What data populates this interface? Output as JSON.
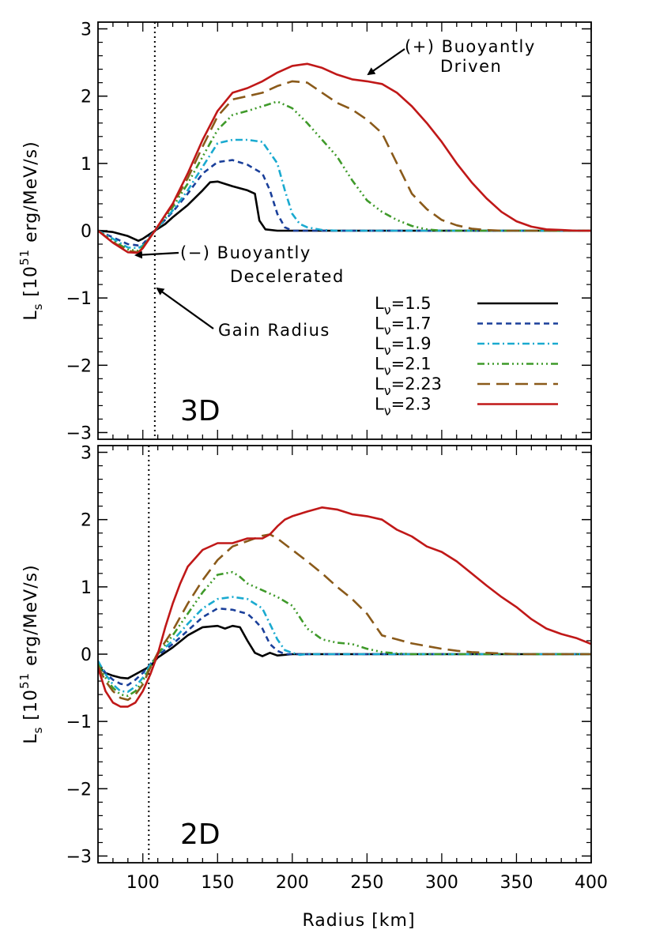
{
  "chart_data": {
    "type": "line",
    "xlabel": "Radius [km]",
    "xlim": [
      70,
      400
    ],
    "xticks": [
      100,
      150,
      200,
      250,
      300,
      350,
      400
    ],
    "ylabel": {
      "base": "L",
      "sub": "s",
      "mid": " [10",
      "sup": "51",
      "tail": " erg/MeV/s)"
    },
    "ylim": [
      -3.1,
      3.1
    ],
    "yticks": [
      -3,
      -2,
      -1,
      0,
      1,
      2,
      3
    ],
    "legend": {
      "position": "right",
      "prefix": "L",
      "sub": "ν",
      "entries": [
        {
          "label": "=1.5",
          "color": "#000000",
          "dash": "solid"
        },
        {
          "label": "=1.7",
          "color": "#1a3f9a",
          "dash": "dashed"
        },
        {
          "label": "=1.9",
          "color": "#1aaad0",
          "dash": "dashdot"
        },
        {
          "label": "=2.1",
          "color": "#3f9a2a",
          "dash": "dashdotdotdot"
        },
        {
          "label": "=2.23",
          "color": "#8a5a1a",
          "dash": "longdash"
        },
        {
          "label": "=2.3",
          "color": "#c01818",
          "dash": "solid"
        }
      ]
    },
    "panels": [
      {
        "name": "3D",
        "gain_radius": 108,
        "annotations": {
          "positive": [
            "(+) Buoyantly",
            "Driven"
          ],
          "negative": [
            "(−) Buoyantly",
            "Decelerated"
          ],
          "gain": "Gain Radius"
        },
        "series": [
          {
            "name": "1.5",
            "x": [
              70,
              80,
              90,
              97,
              100,
              108,
              115,
              120,
              130,
              140,
              145,
              150,
              160,
              170,
              175,
              178,
              182,
              190,
              200,
              400
            ],
            "y": [
              0,
              -0.02,
              -0.08,
              -0.15,
              -0.12,
              0,
              0.1,
              0.2,
              0.38,
              0.6,
              0.72,
              0.73,
              0.66,
              0.6,
              0.55,
              0.15,
              0.02,
              0,
              0,
              0
            ]
          },
          {
            "name": "1.7",
            "x": [
              70,
              80,
              90,
              97,
              100,
              108,
              120,
              130,
              140,
              150,
              160,
              170,
              180,
              185,
              190,
              195,
              200,
              210,
              400
            ],
            "y": [
              0,
              -0.1,
              -0.2,
              -0.22,
              -0.2,
              0,
              0.28,
              0.55,
              0.85,
              1.02,
              1.05,
              0.98,
              0.85,
              0.6,
              0.25,
              0.05,
              0,
              0,
              0
            ]
          },
          {
            "name": "1.9",
            "x": [
              70,
              80,
              90,
              97,
              100,
              108,
              120,
              130,
              140,
              150,
              160,
              170,
              180,
              190,
              195,
              200,
              205,
              210,
              220,
              230,
              400
            ],
            "y": [
              0,
              -0.12,
              -0.25,
              -0.26,
              -0.22,
              0,
              0.3,
              0.6,
              0.95,
              1.3,
              1.35,
              1.35,
              1.32,
              1.0,
              0.6,
              0.25,
              0.1,
              0.05,
              0.01,
              0,
              0
            ]
          },
          {
            "name": "2.1",
            "x": [
              70,
              80,
              90,
              97,
              100,
              108,
              120,
              130,
              140,
              150,
              160,
              170,
              180,
              190,
              200,
              210,
              220,
              230,
              240,
              250,
              260,
              270,
              280,
              290,
              300,
              400
            ],
            "y": [
              0,
              -0.15,
              -0.28,
              -0.3,
              -0.24,
              0,
              0.35,
              0.7,
              1.1,
              1.5,
              1.72,
              1.78,
              1.85,
              1.92,
              1.82,
              1.6,
              1.35,
              1.1,
              0.75,
              0.45,
              0.28,
              0.16,
              0.07,
              0.02,
              0,
              0
            ]
          },
          {
            "name": "2.23",
            "x": [
              70,
              80,
              90,
              97,
              100,
              108,
              120,
              130,
              140,
              150,
              160,
              170,
              180,
              190,
              200,
              210,
              220,
              230,
              240,
              250,
              260,
              270,
              280,
              290,
              300,
              310,
              320,
              330,
              340,
              400
            ],
            "y": [
              0,
              -0.17,
              -0.3,
              -0.32,
              -0.25,
              0,
              0.38,
              0.78,
              1.25,
              1.7,
              1.95,
              2.0,
              2.05,
              2.15,
              2.22,
              2.2,
              2.05,
              1.9,
              1.8,
              1.65,
              1.45,
              1.0,
              0.55,
              0.32,
              0.16,
              0.08,
              0.03,
              0.01,
              0,
              0
            ]
          },
          {
            "name": "2.3",
            "x": [
              70,
              80,
              90,
              97,
              100,
              108,
              120,
              130,
              140,
              150,
              160,
              170,
              180,
              190,
              200,
              210,
              220,
              230,
              240,
              250,
              260,
              270,
              280,
              290,
              300,
              310,
              320,
              330,
              340,
              350,
              360,
              370,
              380,
              390,
              400
            ],
            "y": [
              0,
              -0.18,
              -0.32,
              -0.33,
              -0.26,
              0,
              0.4,
              0.85,
              1.35,
              1.78,
              2.05,
              2.12,
              2.22,
              2.35,
              2.45,
              2.48,
              2.42,
              2.32,
              2.25,
              2.22,
              2.18,
              2.05,
              1.85,
              1.6,
              1.32,
              1.0,
              0.72,
              0.48,
              0.28,
              0.14,
              0.06,
              0.02,
              0.01,
              0,
              0
            ]
          }
        ]
      },
      {
        "name": "2D",
        "gain_radius": 104,
        "series": [
          {
            "name": "1.5",
            "x": [
              70,
              75,
              80,
              85,
              90,
              95,
              100,
              105,
              110,
              120,
              130,
              140,
              150,
              155,
              160,
              165,
              170,
              175,
              180,
              185,
              190,
              200,
              210,
              400
            ],
            "y": [
              -0.18,
              -0.28,
              -0.32,
              -0.35,
              -0.36,
              -0.3,
              -0.24,
              -0.18,
              -0.05,
              0.1,
              0.28,
              0.4,
              0.42,
              0.38,
              0.42,
              0.4,
              0.2,
              0.02,
              -0.03,
              0.02,
              -0.02,
              0,
              0,
              0
            ]
          },
          {
            "name": "1.7",
            "x": [
              70,
              75,
              80,
              85,
              90,
              95,
              100,
              105,
              110,
              120,
              130,
              140,
              150,
              160,
              170,
              175,
              180,
              185,
              190,
              195,
              200,
              210,
              400
            ],
            "y": [
              -0.12,
              -0.28,
              -0.38,
              -0.44,
              -0.46,
              -0.38,
              -0.28,
              -0.15,
              -0.02,
              0.15,
              0.35,
              0.55,
              0.68,
              0.66,
              0.6,
              0.5,
              0.38,
              0.15,
              0.05,
              0,
              0,
              0,
              0
            ]
          },
          {
            "name": "1.9",
            "x": [
              70,
              75,
              80,
              85,
              90,
              95,
              100,
              105,
              110,
              120,
              130,
              140,
              150,
              160,
              170,
              180,
              185,
              190,
              195,
              200,
              205,
              210,
              400
            ],
            "y": [
              -0.1,
              -0.3,
              -0.45,
              -0.55,
              -0.56,
              -0.48,
              -0.35,
              -0.15,
              0,
              0.2,
              0.45,
              0.68,
              0.82,
              0.85,
              0.82,
              0.68,
              0.45,
              0.22,
              0.06,
              0.02,
              -0.01,
              0,
              0
            ]
          },
          {
            "name": "2.1",
            "x": [
              70,
              75,
              80,
              85,
              90,
              95,
              100,
              105,
              110,
              120,
              130,
              140,
              150,
              160,
              165,
              170,
              180,
              190,
              200,
              210,
              220,
              230,
              240,
              250,
              260,
              270,
              280,
              400
            ],
            "y": [
              -0.15,
              -0.35,
              -0.5,
              -0.6,
              -0.62,
              -0.55,
              -0.4,
              -0.18,
              0,
              0.28,
              0.6,
              0.92,
              1.18,
              1.22,
              1.15,
              1.05,
              0.95,
              0.85,
              0.72,
              0.38,
              0.22,
              0.17,
              0.15,
              0.08,
              0.03,
              0.01,
              0,
              0
            ]
          },
          {
            "name": "2.23",
            "x": [
              70,
              75,
              80,
              85,
              90,
              95,
              100,
              105,
              110,
              120,
              130,
              140,
              150,
              160,
              170,
              180,
              185,
              190,
              200,
              210,
              220,
              230,
              240,
              250,
              260,
              270,
              280,
              290,
              300,
              310,
              320,
              330,
              340,
              350,
              400
            ],
            "y": [
              -0.18,
              -0.4,
              -0.55,
              -0.65,
              -0.68,
              -0.6,
              -0.45,
              -0.2,
              0.02,
              0.35,
              0.75,
              1.1,
              1.4,
              1.6,
              1.68,
              1.76,
              1.78,
              1.72,
              1.55,
              1.38,
              1.2,
              1.0,
              0.82,
              0.6,
              0.28,
              0.22,
              0.16,
              0.12,
              0.08,
              0.05,
              0.03,
              0.02,
              0.01,
              0,
              0
            ]
          },
          {
            "name": "2.3",
            "x": [
              70,
              75,
              80,
              85,
              90,
              95,
              100,
              105,
              110,
              115,
              120,
              125,
              130,
              140,
              150,
              160,
              170,
              180,
              185,
              190,
              195,
              200,
              210,
              220,
              230,
              240,
              250,
              260,
              270,
              280,
              290,
              300,
              310,
              320,
              330,
              340,
              350,
              360,
              370,
              380,
              390,
              400
            ],
            "y": [
              -0.2,
              -0.55,
              -0.72,
              -0.78,
              -0.78,
              -0.72,
              -0.55,
              -0.3,
              0,
              0.4,
              0.75,
              1.05,
              1.3,
              1.55,
              1.65,
              1.65,
              1.72,
              1.72,
              1.78,
              1.9,
              2.0,
              2.05,
              2.12,
              2.18,
              2.15,
              2.08,
              2.05,
              2.0,
              1.85,
              1.75,
              1.6,
              1.52,
              1.38,
              1.2,
              1.02,
              0.85,
              0.7,
              0.52,
              0.38,
              0.3,
              0.24,
              0.15
            ]
          }
        ]
      }
    ]
  }
}
